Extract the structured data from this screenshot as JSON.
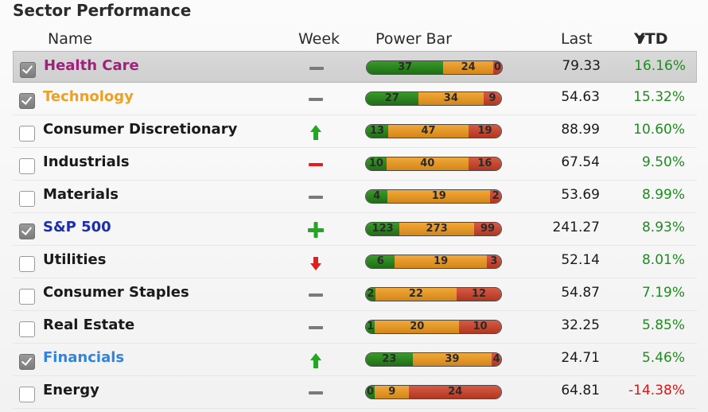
{
  "title": "Sector Performance",
  "headers": {
    "name": "Name",
    "week": "Week",
    "power": "Power Bar",
    "last": "Last",
    "ytd": "YTD"
  },
  "colors": {
    "ytd_positive": "#1e8c1e",
    "ytd_negative": "#d11a1a",
    "bar_green": "#2a8a1f",
    "bar_orange": "#e69a2a",
    "bar_red": "#c3442d"
  },
  "rows": [
    {
      "name": "Health Care",
      "checked": true,
      "selected": true,
      "color": "#a0217c",
      "week": "flat-gray-icon",
      "power": [
        37,
        24,
        0
      ],
      "last": "79.33",
      "ytd": "16.16%"
    },
    {
      "name": "Technology",
      "checked": true,
      "selected": false,
      "color": "#f0a020",
      "week": "flat-gray-icon",
      "power": [
        27,
        34,
        9
      ],
      "last": "54.63",
      "ytd": "15.32%"
    },
    {
      "name": "Consumer Discretionary",
      "checked": false,
      "selected": false,
      "color": "#1a1a1a",
      "week": "arrow-up-green-icon",
      "power": [
        13,
        47,
        19
      ],
      "last": "88.99",
      "ytd": "10.60%"
    },
    {
      "name": "Industrials",
      "checked": false,
      "selected": false,
      "color": "#1a1a1a",
      "week": "minus-red-icon",
      "power": [
        10,
        40,
        16
      ],
      "last": "67.54",
      "ytd": "9.50%"
    },
    {
      "name": "Materials",
      "checked": false,
      "selected": false,
      "color": "#1a1a1a",
      "week": "flat-gray-icon",
      "power": [
        4,
        19,
        2
      ],
      "last": "53.69",
      "ytd": "8.99%"
    },
    {
      "name": "S&P 500",
      "checked": true,
      "selected": false,
      "color": "#1d2fa8",
      "week": "plus-green-icon",
      "power": [
        123,
        273,
        99
      ],
      "last": "241.27",
      "ytd": "8.93%"
    },
    {
      "name": "Utilities",
      "checked": false,
      "selected": false,
      "color": "#1a1a1a",
      "week": "arrow-down-red-icon",
      "power": [
        6,
        19,
        3
      ],
      "last": "52.14",
      "ytd": "8.01%"
    },
    {
      "name": "Consumer Staples",
      "checked": false,
      "selected": false,
      "color": "#1a1a1a",
      "week": "flat-gray-icon",
      "power": [
        2,
        22,
        12
      ],
      "last": "54.87",
      "ytd": "7.19%"
    },
    {
      "name": "Real Estate",
      "checked": false,
      "selected": false,
      "color": "#1a1a1a",
      "week": "flat-gray-icon",
      "power": [
        1,
        20,
        10
      ],
      "last": "32.25",
      "ytd": "5.85%"
    },
    {
      "name": "Financials",
      "checked": true,
      "selected": false,
      "color": "#2f84e0",
      "week": "arrow-up-green-icon",
      "power": [
        23,
        39,
        4
      ],
      "last": "24.71",
      "ytd": "5.46%"
    },
    {
      "name": "Energy",
      "checked": false,
      "selected": false,
      "color": "#1a1a1a",
      "week": "flat-gray-icon",
      "power": [
        0,
        9,
        24
      ],
      "last": "64.81",
      "ytd": "-14.38%"
    }
  ]
}
